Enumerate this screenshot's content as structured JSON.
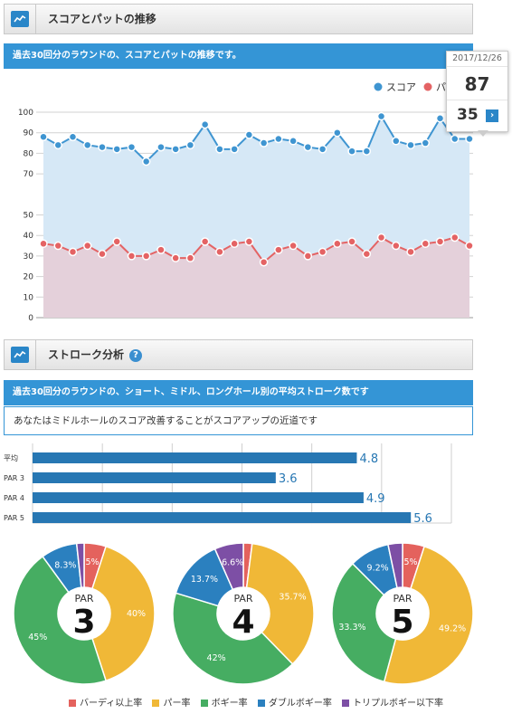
{
  "colors": {
    "score": "#3f95d1",
    "score_fill": "#d6e8f6",
    "putt": "#e46364",
    "putt_fill": "#e4d0da",
    "accent": "#3495d6",
    "bar": "#2777b3",
    "birdie": "#e4625d",
    "par": "#f0b837",
    "bogey": "#46ad62",
    "double": "#2b80bf",
    "triple": "#7d4fa5"
  },
  "section1": {
    "title": "スコアとパットの推移",
    "description": "過去30回分のラウンドの、スコアとパットの推移です。",
    "legend_score": "スコア",
    "legend_putt": "パ"
  },
  "tooltip": {
    "date": "2017/12/26",
    "score": "87",
    "putt": "35",
    "arrow": "›"
  },
  "section2": {
    "title": "ストローク分析",
    "help": "?",
    "description": "過去30回分のラウンドの、ショート、ミドル、ロングホール別の平均ストローク数です",
    "advice": "あなたはミドルホールのスコア改善することがスコアアップの近道です"
  },
  "pie_legend": [
    "バーディ以上率",
    "パー率",
    "ボギー率",
    "ダブルボギー率",
    "トリプルボギー以下率"
  ],
  "chart_data": [
    {
      "type": "area",
      "ylim": [
        0,
        100
      ],
      "yticks": [
        0,
        10,
        20,
        30,
        40,
        50,
        70,
        80,
        90,
        100
      ],
      "series": [
        {
          "name": "スコア",
          "values": [
            88,
            84,
            88,
            84,
            83,
            82,
            83,
            76,
            83,
            82,
            84,
            94,
            82,
            82,
            89,
            85,
            87,
            86,
            83,
            82,
            90,
            81,
            81,
            98,
            86,
            84,
            85,
            97,
            87,
            87
          ]
        },
        {
          "name": "パ",
          "values": [
            36,
            35,
            32,
            35,
            31,
            37,
            30,
            30,
            33,
            29,
            29,
            37,
            32,
            36,
            37,
            27,
            33,
            35,
            30,
            32,
            36,
            37,
            31,
            39,
            35,
            32,
            36,
            37,
            39,
            35
          ]
        }
      ]
    },
    {
      "type": "bar",
      "orientation": "horizontal",
      "categories": [
        "平均",
        "PAR 3",
        "PAR 4",
        "PAR 5"
      ],
      "values": [
        4.8,
        3.6,
        4.9,
        5.6
      ],
      "labels": [
        "4.8",
        "3.6",
        "4.9",
        "5.6"
      ],
      "xlim": [
        0,
        6.2
      ]
    },
    {
      "type": "pie",
      "center_label": "PAR",
      "center_value": "3",
      "categories": [
        "バーディ以上率",
        "パー率",
        "ボギー率",
        "ダブルボギー率",
        "トリプルボギー以下率"
      ],
      "values": [
        5,
        40,
        45,
        8.3,
        1.7
      ],
      "labels": [
        "5%",
        "40%",
        "45%",
        "8.3%",
        ""
      ]
    },
    {
      "type": "pie",
      "center_label": "PAR",
      "center_value": "4",
      "categories": [
        "バーディ以上率",
        "パー率",
        "ボギー率",
        "ダブルボギー率",
        "トリプルボギー以下率"
      ],
      "values": [
        2,
        35.7,
        42,
        13.7,
        6.6
      ],
      "labels": [
        "",
        "35.7%",
        "42%",
        "13.7%",
        "6.6%"
      ]
    },
    {
      "type": "pie",
      "center_label": "PAR",
      "center_value": "5",
      "categories": [
        "バーディ以上率",
        "パー率",
        "ボギー率",
        "ダブルボギー率",
        "トリプルボギー以下率"
      ],
      "values": [
        5,
        49.2,
        33.3,
        9.2,
        3.3
      ],
      "labels": [
        "5%",
        "49.2%",
        "33.3%",
        "9.2%",
        ""
      ]
    }
  ]
}
